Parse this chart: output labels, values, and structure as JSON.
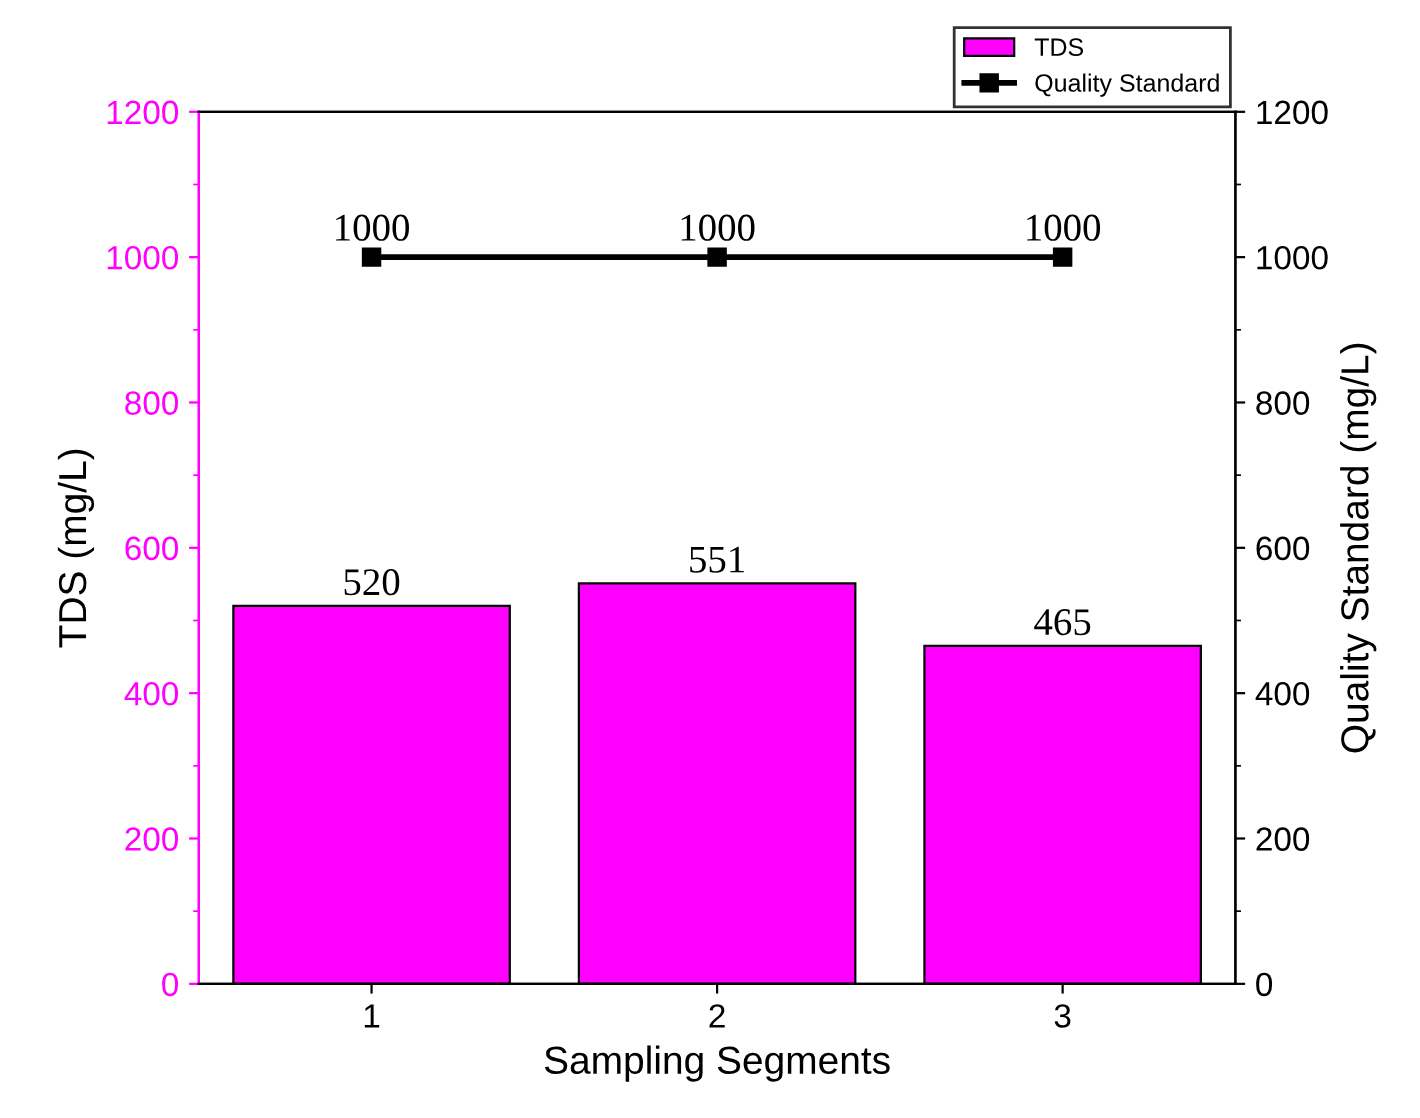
{
  "chart_data": {
    "type": "bar",
    "xlabel": "Sampling Segments",
    "ylabel": "TDS (mg/L)",
    "y2label": "Quality Standard (mg/L)",
    "categories": [
      "1",
      "2",
      "3"
    ],
    "series": [
      {
        "name": "TDS",
        "color": "#ff00ff",
        "values": [
          520,
          551,
          465
        ]
      },
      {
        "name": "Quality Standard",
        "type": "line",
        "axis": "y2",
        "color": "#000000",
        "values": [
          1000,
          1000,
          1000
        ]
      }
    ],
    "ylim": [
      0,
      1200
    ],
    "yticks": [
      0,
      200,
      400,
      600,
      800,
      1000,
      1200
    ],
    "y2lim": [
      0,
      1200
    ],
    "y2ticks": [
      0,
      200,
      400,
      600,
      800,
      1000,
      1200
    ],
    "data_labels": true,
    "marker": "square",
    "line_style": "solid",
    "legend": "top right",
    "grid": false
  }
}
